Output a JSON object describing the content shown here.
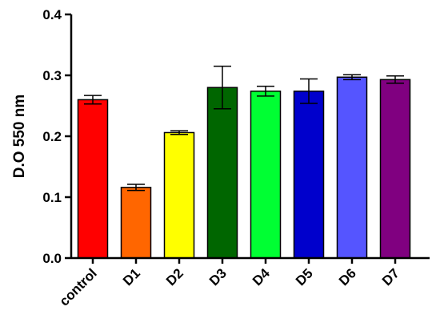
{
  "chart_data": {
    "type": "bar",
    "title": "",
    "xlabel": "",
    "ylabel": "D.O 550 nm",
    "ylim": [
      0,
      0.4
    ],
    "yticks": [
      "0.0",
      "0.1",
      "0.2",
      "0.3",
      "0.4"
    ],
    "grid": false,
    "categories": [
      "control",
      "D1",
      "D2",
      "D3",
      "D4",
      "D5",
      "D6",
      "D7"
    ],
    "values": [
      0.26,
      0.116,
      0.206,
      0.28,
      0.274,
      0.274,
      0.297,
      0.293
    ],
    "error": [
      0.007,
      0.005,
      0.003,
      0.035,
      0.008,
      0.02,
      0.004,
      0.006
    ],
    "colors": [
      "#ff0000",
      "#ff6600",
      "#ffff00",
      "#006600",
      "#00ff33",
      "#0000cc",
      "#5555ff",
      "#800080"
    ]
  }
}
